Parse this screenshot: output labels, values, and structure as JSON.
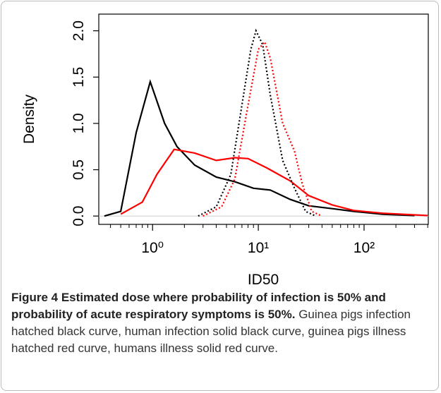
{
  "chart_data": {
    "type": "line",
    "xlabel": "ID50",
    "ylabel": "Density",
    "xscale": "log",
    "xlim": [
      0.31,
      405
    ],
    "ylim": [
      -0.09,
      2.18
    ],
    "xticks": [
      {
        "value": 1,
        "label": "10⁰"
      },
      {
        "value": 10,
        "label": "10¹"
      },
      {
        "value": 100,
        "label": "10²"
      }
    ],
    "xminor_ticks": [
      0.4,
      0.5,
      0.6,
      0.7,
      0.8,
      0.9,
      2,
      3,
      4,
      5,
      6,
      7,
      8,
      9,
      20,
      30,
      40,
      50,
      60,
      70,
      80,
      90,
      200,
      300,
      400
    ],
    "yticks": [
      {
        "value": 0,
        "label": "0.0"
      },
      0.5,
      {
        "value": 1,
        "label": "1.0"
      },
      1.5,
      {
        "value": 2,
        "label": "2.0"
      }
    ],
    "zero_line": true,
    "series": [
      {
        "color": "#000000",
        "dash": "solid",
        "x": [
          0.35,
          0.5,
          0.7,
          0.95,
          1.3,
          1.7,
          2.5,
          4,
          6,
          9,
          13,
          20,
          30,
          50,
          80,
          150,
          300
        ],
        "values": [
          0,
          0.05,
          0.9,
          1.45,
          1.0,
          0.75,
          0.55,
          0.42,
          0.37,
          0.3,
          0.28,
          0.18,
          0.11,
          0.08,
          0.05,
          0.02,
          0.005
        ]
      },
      {
        "color": "#ff0000",
        "dash": "solid",
        "x": [
          0.5,
          0.8,
          1.1,
          1.6,
          2.5,
          4,
          6,
          8,
          12,
          20,
          30,
          50,
          80,
          150,
          400
        ],
        "values": [
          0.02,
          0.15,
          0.45,
          0.72,
          0.68,
          0.6,
          0.63,
          0.62,
          0.52,
          0.38,
          0.22,
          0.12,
          0.06,
          0.03,
          0.005
        ]
      },
      {
        "color": "#000000",
        "dash": "dotted",
        "x": [
          2.7,
          4,
          5.5,
          7,
          8.5,
          9.5,
          11,
          13,
          17,
          22,
          28,
          35
        ],
        "values": [
          0,
          0.1,
          0.45,
          1.2,
          1.8,
          2.0,
          1.85,
          1.3,
          0.6,
          0.3,
          0.05,
          0
        ]
      },
      {
        "color": "#ff0000",
        "dash": "dotted",
        "x": [
          3,
          4.5,
          6,
          8,
          10,
          11.5,
          13,
          17,
          22,
          26,
          32,
          40
        ],
        "values": [
          0,
          0.1,
          0.4,
          1.2,
          1.8,
          1.88,
          1.7,
          1.0,
          0.7,
          0.35,
          0.05,
          0
        ]
      }
    ]
  },
  "caption": {
    "label": "Figure 4 Estimated dose where probability of infection is 50% and probability of acute respiratory symptoms is 50%.",
    "text": "Guinea pigs infection hatched black curve, human infection solid black curve, guinea pigs illness hatched red curve, humans illness solid red curve."
  }
}
